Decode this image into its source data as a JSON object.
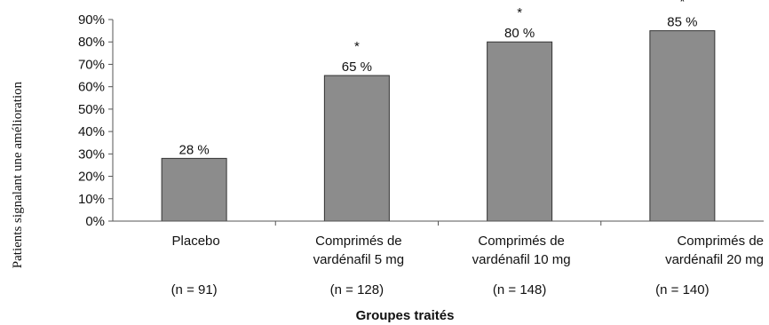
{
  "chart_data": {
    "type": "bar",
    "categories": [
      [
        "Placebo"
      ],
      [
        "Comprimés de",
        "vardénafil 5 mg"
      ],
      [
        "Comprimés de",
        "vardénafil 10 mg"
      ],
      [
        "Comprimés de",
        "vardénafil 20 mg"
      ]
    ],
    "group_sizes": [
      "(n = 91)",
      "(n = 128)",
      "(n = 148)",
      "(n = 140)"
    ],
    "values": [
      28,
      65,
      80,
      85
    ],
    "data_labels": [
      "28 %",
      "65 %",
      "80 %",
      "85 %"
    ],
    "significance": [
      "",
      "*",
      "*",
      "*"
    ],
    "ylim": [
      0,
      90
    ],
    "yticks": [
      0,
      10,
      20,
      30,
      40,
      50,
      60,
      70,
      80,
      90
    ],
    "ytick_labels": [
      "0%",
      "10%",
      "20%",
      "30%",
      "40%",
      "50%",
      "60%",
      "70%",
      "80%",
      "90%"
    ],
    "xlabel": "Groupes traités",
    "ylabel": "Patients signalant une amélioration",
    "grid": false,
    "legend": "none",
    "bar_color": "#8c8c8c"
  }
}
